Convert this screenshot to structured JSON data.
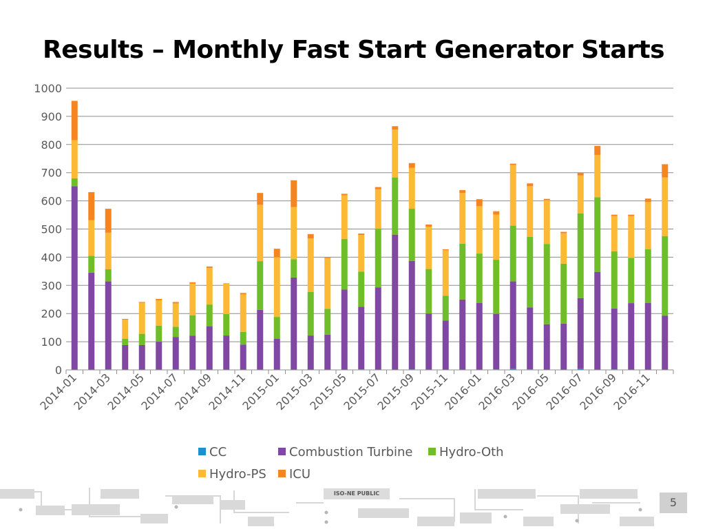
{
  "slide": {
    "title": "Results – Monthly Fast Start Generator Starts",
    "footer_label": "ISO-NE PUBLIC",
    "page_number": "5"
  },
  "colors": {
    "CC": "#1b92d0",
    "Combustion Turbine": "#8148a3",
    "Hydro-Oth": "#6fbe29",
    "Hydro-PS": "#fbb936",
    "ICU": "#f58520",
    "gridline": "#8c8c8c"
  },
  "chart_data": {
    "type": "bar",
    "stacked": true,
    "title": "",
    "xlabel": "",
    "ylabel": "",
    "ylim": [
      0,
      1000
    ],
    "yticks": [
      0,
      100,
      200,
      300,
      400,
      500,
      600,
      700,
      800,
      900,
      1000
    ],
    "grid": true,
    "legend_position": "bottom",
    "categories": [
      "2014-01",
      "2014-02",
      "2014-03",
      "2014-04",
      "2014-05",
      "2014-06",
      "2014-07",
      "2014-08",
      "2014-09",
      "2014-10",
      "2014-11",
      "2014-12",
      "2015-01",
      "2015-02",
      "2015-03",
      "2015-04",
      "2015-05",
      "2015-06",
      "2015-07",
      "2015-08",
      "2015-09",
      "2015-10",
      "2015-11",
      "2015-12",
      "2016-01",
      "2016-02",
      "2016-03",
      "2016-04",
      "2016-05",
      "2016-06",
      "2016-07",
      "2016-08",
      "2016-09",
      "2016-10",
      "2016-11",
      "2016-12"
    ],
    "x_tick_labels": [
      "2014-01",
      "2014-03",
      "2014-05",
      "2014-07",
      "2014-09",
      "2014-11",
      "2015-01",
      "2015-03",
      "2015-05",
      "2015-07",
      "2015-09",
      "2015-11",
      "2016-01",
      "2016-03",
      "2016-05",
      "2016-07",
      "2016-09",
      "2016-11"
    ],
    "series": [
      {
        "name": "CC",
        "values": [
          0,
          0,
          2,
          0,
          0,
          0,
          2,
          0,
          0,
          0,
          0,
          0,
          0,
          0,
          0,
          0,
          0,
          2,
          0,
          0,
          2,
          0,
          0,
          0,
          0,
          2,
          4,
          2,
          0,
          0,
          5,
          0,
          2,
          0,
          0,
          0
        ]
      },
      {
        "name": "Combustion Turbine",
        "values": [
          652,
          345,
          312,
          88,
          88,
          100,
          115,
          121,
          155,
          122,
          90,
          213,
          110,
          328,
          122,
          125,
          285,
          222,
          293,
          480,
          385,
          200,
          175,
          250,
          238,
          197,
          310,
          220,
          162,
          164,
          250,
          348,
          216,
          237,
          238,
          192
        ]
      },
      {
        "name": "Hydro-Oth",
        "values": [
          28,
          60,
          43,
          22,
          40,
          57,
          36,
          73,
          77,
          76,
          45,
          173,
          78,
          65,
          155,
          92,
          180,
          125,
          208,
          203,
          185,
          158,
          88,
          198,
          175,
          192,
          198,
          250,
          285,
          213,
          300,
          265,
          203,
          161,
          190,
          283
        ]
      },
      {
        "name": "Hydro-PS",
        "values": [
          135,
          126,
          130,
          68,
          110,
          90,
          83,
          112,
          130,
          110,
          133,
          200,
          212,
          185,
          190,
          180,
          155,
          130,
          140,
          170,
          145,
          150,
          162,
          180,
          168,
          160,
          215,
          180,
          155,
          108,
          135,
          150,
          125,
          148,
          168,
          208
        ]
      },
      {
        "name": "ICU",
        "values": [
          140,
          100,
          85,
          3,
          3,
          5,
          5,
          5,
          5,
          0,
          5,
          42,
          30,
          95,
          15,
          3,
          5,
          5,
          8,
          12,
          17,
          8,
          3,
          10,
          25,
          12,
          5,
          10,
          5,
          5,
          10,
          32,
          5,
          5,
          12,
          47
        ]
      }
    ]
  }
}
